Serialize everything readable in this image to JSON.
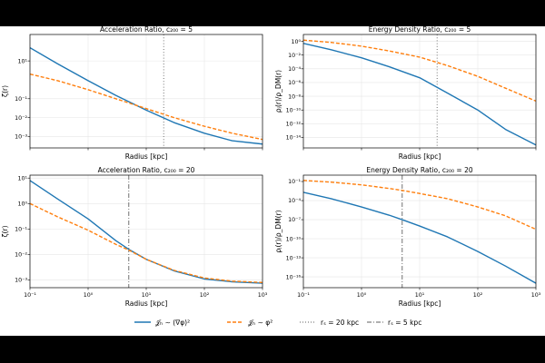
{
  "colors": {
    "blue": "#1f77b4",
    "orange": "#ff7f0e",
    "gray": "#7f7f7f",
    "grid": "#e6e6e6"
  },
  "legend": {
    "items": [
      {
        "label": "𝒥ₕ ∼ (∇φ)²",
        "style": "solid",
        "color": "#1f77b4"
      },
      {
        "label": "𝒥ₕ ∼ φ²",
        "style": "dashed",
        "color": "#ff7f0e"
      },
      {
        "label": "rₛ = 20 kpc",
        "style": "dotted",
        "color": "#7f7f7f"
      },
      {
        "label": "rₛ = 5 kpc",
        "style": "dashdot",
        "color": "#7f7f7f"
      }
    ]
  },
  "chart_data": [
    {
      "type": "line",
      "title": "Acceleration Ratio, c₂₀₀ = 5",
      "xlabel": "Radius [kpc]",
      "ylabel": "ζ(r)",
      "xscale": "log",
      "yscale": "log",
      "xlim": [
        0.1,
        1000
      ],
      "ylim": [
        0.00025,
        250
      ],
      "xticks": [],
      "yticks": [
        "10⁻³",
        "10⁻²",
        "10⁻¹",
        "10¹"
      ],
      "ytick_vals": [
        0.001,
        0.01,
        0.1,
        10
      ],
      "grid": true,
      "vline": {
        "x": 20,
        "style": "dotted"
      },
      "series": [
        {
          "style": "solid",
          "color": "#1f77b4",
          "x": [
            0.1,
            0.3,
            1,
            3,
            10,
            30,
            100,
            300,
            1000
          ],
          "y": [
            50,
            7,
            0.9,
            0.15,
            0.025,
            0.0055,
            0.0015,
            0.0006,
            0.0004
          ]
        },
        {
          "style": "dashed",
          "color": "#ff7f0e",
          "x": [
            0.1,
            0.3,
            1,
            3,
            10,
            30,
            100,
            300,
            1000
          ],
          "y": [
            2,
            0.9,
            0.3,
            0.1,
            0.03,
            0.01,
            0.0035,
            0.0015,
            0.0007
          ]
        }
      ]
    },
    {
      "type": "line",
      "title": "Energy Density Ratio, c₂₀₀ = 5",
      "xlabel": "Radius [kpc]",
      "ylabel": "ρⱼ(r)/ρ_DM(r)",
      "xscale": "log",
      "yscale": "log",
      "xlim": [
        0.1,
        1000
      ],
      "ylim": [
        3e-16,
        10
      ],
      "xticks": [],
      "yticks": [
        "10⁰",
        "10⁻²",
        "10⁻⁴",
        "10⁻⁶",
        "10⁻⁸",
        "10⁻¹⁰",
        "10⁻¹²",
        "10⁻¹⁴"
      ],
      "ytick_vals": [
        1,
        0.01,
        0.0001,
        1e-06,
        1e-08,
        1e-10,
        1e-12,
        1e-14
      ],
      "grid": true,
      "vline": {
        "x": 20,
        "style": "dotted"
      },
      "series": [
        {
          "style": "solid",
          "color": "#1f77b4",
          "x": [
            0.1,
            0.3,
            1,
            3,
            10,
            30,
            100,
            300,
            1000
          ],
          "y": [
            0.5,
            0.06,
            0.004,
            0.0002,
            5e-06,
            3e-08,
            1e-10,
            1.5e-13,
            8e-16
          ]
        },
        {
          "style": "dashed",
          "color": "#ff7f0e",
          "x": [
            0.1,
            0.3,
            1,
            3,
            10,
            30,
            100,
            300,
            1000
          ],
          "y": [
            1.5,
            0.7,
            0.2,
            0.04,
            0.005,
            0.0003,
            8e-06,
            1.5e-07,
            2e-09
          ]
        }
      ]
    },
    {
      "type": "line",
      "title": "Acceleration Ratio, c₂₀₀ = 20",
      "xlabel": "Radius [kpc]",
      "ylabel": "ζ(r)",
      "xscale": "log",
      "yscale": "log",
      "xlim": [
        0.1,
        1000
      ],
      "ylim": [
        0.0005,
        13
      ],
      "xticks": [
        "10⁻¹",
        "10⁰",
        "10¹",
        "10²",
        "10³"
      ],
      "xtick_vals": [
        0.1,
        1,
        10,
        100,
        1000
      ],
      "yticks": [
        "10¹",
        "10⁰",
        "10⁻¹",
        "10⁻²",
        "10⁻³"
      ],
      "ytick_vals": [
        10,
        1,
        0.1,
        0.01,
        0.001
      ],
      "grid": true,
      "vline": {
        "x": 5,
        "style": "dashdot"
      },
      "series": [
        {
          "style": "solid",
          "color": "#1f77b4",
          "x": [
            0.1,
            0.3,
            1,
            3,
            5,
            10,
            30,
            100,
            300,
            1000
          ],
          "y": [
            8,
            1.5,
            0.25,
            0.035,
            0.016,
            0.0065,
            0.0023,
            0.0011,
            0.00085,
            0.00075
          ]
        },
        {
          "style": "dashed",
          "color": "#ff7f0e",
          "x": [
            0.1,
            0.3,
            1,
            3,
            5,
            10,
            30,
            100,
            300,
            1000
          ],
          "y": [
            1,
            0.3,
            0.09,
            0.025,
            0.015,
            0.0065,
            0.0024,
            0.0012,
            0.0009,
            0.0008
          ]
        }
      ]
    },
    {
      "type": "line",
      "title": "Energy Density Ratio, c₂₀₀ = 20",
      "xlabel": "Radius [kpc]",
      "ylabel": "ρⱼ(r)/ρ_DM(r)",
      "xscale": "log",
      "yscale": "log",
      "xlim": [
        0.1,
        1000
      ],
      "ylim": [
        2e-18,
        1
      ],
      "xticks": [
        "10⁻¹",
        "10⁰",
        "10¹",
        "10²",
        "10³"
      ],
      "xtick_vals": [
        0.1,
        1,
        10,
        100,
        1000
      ],
      "yticks": [
        "10⁻¹",
        "10⁻⁴",
        "10⁻⁷",
        "10⁻¹⁰",
        "10⁻¹³",
        "10⁻¹⁶"
      ],
      "ytick_vals": [
        0.1,
        0.0001,
        1e-07,
        1e-10,
        1e-13,
        1e-16
      ],
      "grid": true,
      "vline": {
        "x": 5,
        "style": "dashdot"
      },
      "series": [
        {
          "style": "solid",
          "color": "#1f77b4",
          "x": [
            0.1,
            0.3,
            1,
            3,
            5,
            10,
            30,
            100,
            300,
            1000
          ],
          "y": [
            0.002,
            0.0002,
            1e-05,
            5e-07,
            1e-07,
            1e-08,
            2e-10,
            1e-12,
            5e-15,
            1e-17
          ]
        },
        {
          "style": "dashed",
          "color": "#ff7f0e",
          "x": [
            0.1,
            0.3,
            1,
            3,
            5,
            10,
            30,
            100,
            300,
            1000
          ],
          "y": [
            0.15,
            0.08,
            0.03,
            0.008,
            0.004,
            0.0013,
            0.0002,
            1e-05,
            4e-07,
            3e-09
          ]
        }
      ]
    }
  ]
}
